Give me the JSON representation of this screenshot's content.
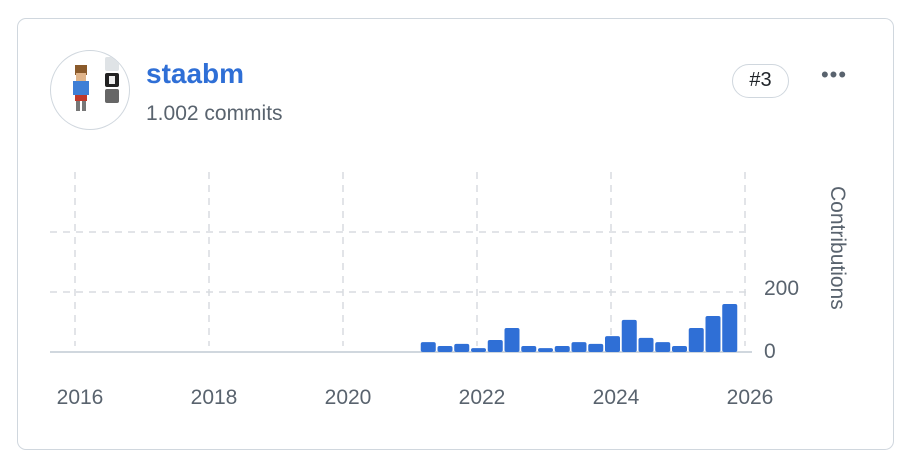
{
  "contributor": {
    "username": "staabm",
    "commits_label": "1.002 commits",
    "rank_badge": "#3",
    "more_icon": "kebab-horizontal-icon",
    "more_label": "•••"
  },
  "colors": {
    "bar": "#2f6fd6",
    "link": "#2f6fd6",
    "muted": "#59636e",
    "grid": "#d8dce0"
  },
  "chart_data": {
    "type": "bar",
    "ylabel": "Contributions",
    "xlabel": "",
    "x_ticks": [
      "2016",
      "2018",
      "2020",
      "2022",
      "2024",
      "2026"
    ],
    "y_ticks": [
      "0",
      "200"
    ],
    "ylim": [
      0,
      600
    ],
    "grid": true,
    "categories": [
      "2021-Q2",
      "2021-Q3",
      "2021-Q4",
      "2022-Q1",
      "2022-Q2",
      "2022-Q3",
      "2022-Q4",
      "2023-Q1",
      "2023-Q2",
      "2023-Q3",
      "2023-Q4",
      "2024-Q1",
      "2024-Q2",
      "2024-Q3",
      "2024-Q4",
      "2025-Q1",
      "2025-Q2",
      "2025-Q3",
      "2025-Q4"
    ],
    "values": [
      33,
      20,
      27,
      13,
      40,
      80,
      20,
      13,
      20,
      33,
      27,
      53,
      107,
      47,
      33,
      20,
      80,
      120,
      160
    ]
  }
}
